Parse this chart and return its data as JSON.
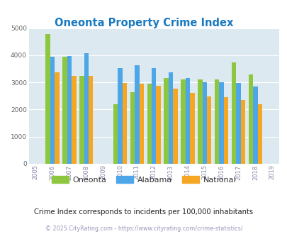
{
  "title": "Oneonta Property Crime Index",
  "years": [
    2005,
    2006,
    2007,
    2008,
    2009,
    2010,
    2011,
    2012,
    2013,
    2014,
    2015,
    2016,
    2017,
    2018,
    2019
  ],
  "oneonta": [
    null,
    4780,
    3950,
    3250,
    null,
    2200,
    2630,
    2940,
    3160,
    3100,
    3120,
    3120,
    3730,
    3290,
    null
  ],
  "alabama": [
    null,
    3950,
    3970,
    4080,
    null,
    3520,
    3620,
    3530,
    3360,
    3170,
    3010,
    3000,
    2990,
    2850,
    null
  ],
  "national": [
    null,
    3360,
    3250,
    3230,
    null,
    2970,
    2940,
    2880,
    2760,
    2610,
    2490,
    2460,
    2360,
    2200,
    null
  ],
  "color_oneonta": "#8dc63f",
  "color_alabama": "#4da6e8",
  "color_national": "#f5a623",
  "bg_color": "#dce9f0",
  "ylim": [
    0,
    5000
  ],
  "yticks": [
    0,
    1000,
    2000,
    3000,
    4000,
    5000
  ],
  "title_color": "#1a7abf",
  "xtick_color": "#8888aa",
  "ytick_color": "#666666",
  "subtitle": "Crime Index corresponds to incidents per 100,000 inhabitants",
  "footer": "© 2025 CityRating.com - https://www.cityrating.com/crime-statistics/",
  "bar_width": 0.27
}
